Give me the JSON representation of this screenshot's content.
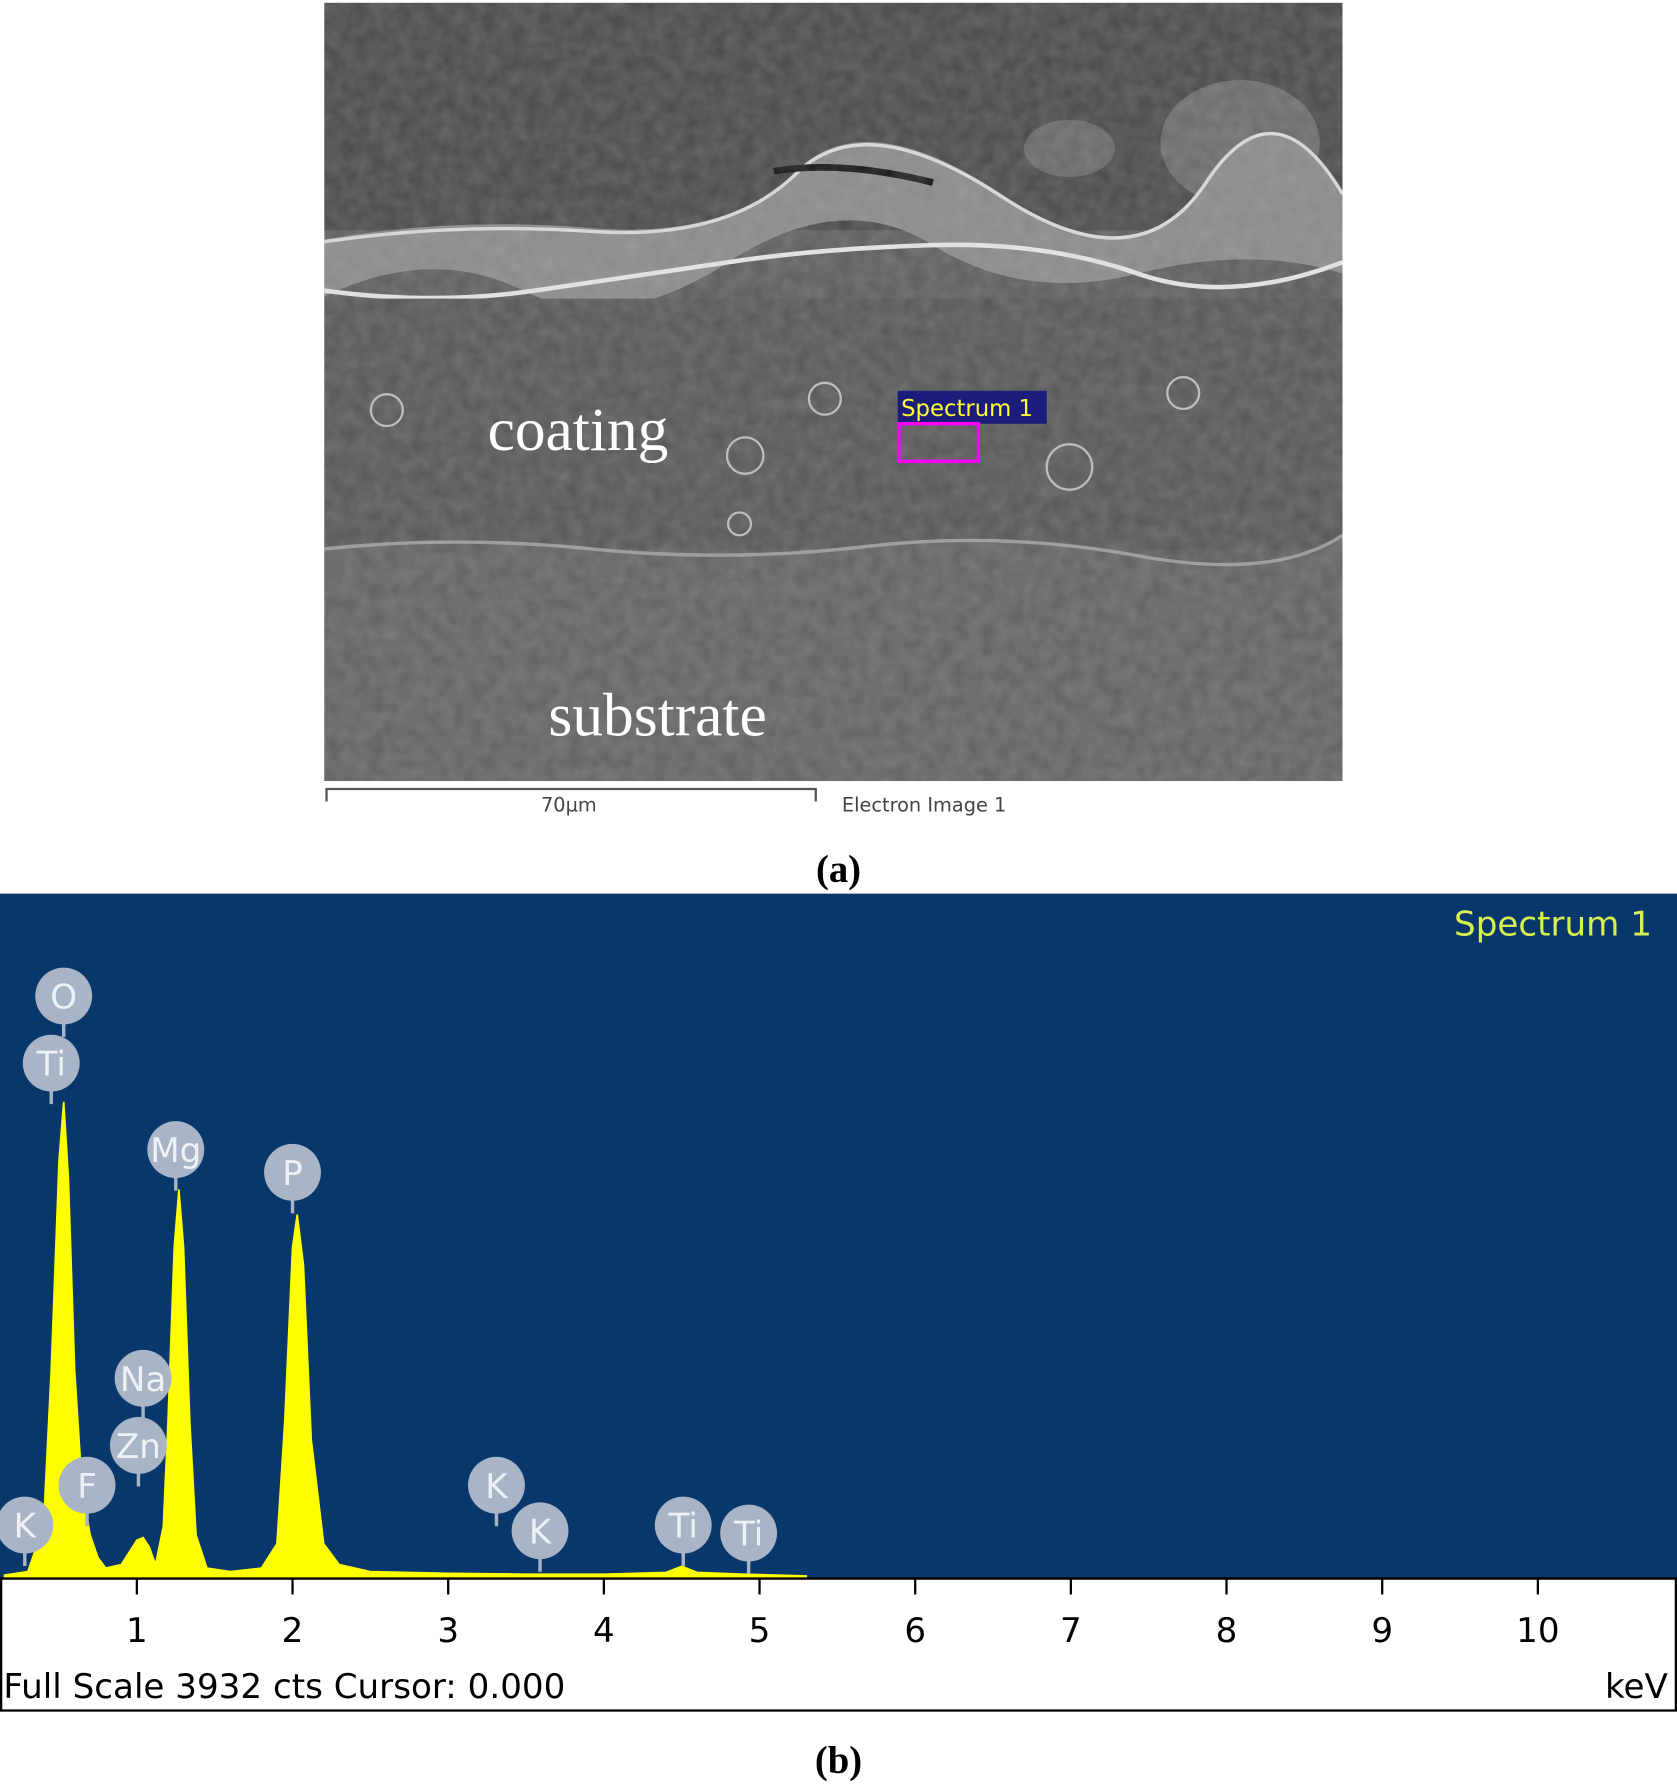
{
  "panel_a": {
    "region_labels": [
      "coating",
      "substrate"
    ],
    "spectrum_box": "Spectrum 1",
    "scale_bar": "70µm",
    "image_name": "Electron Image 1",
    "caption": "(a)"
  },
  "chart_data": {
    "type": "line",
    "title": "Spectrum 1",
    "x": [
      0.15,
      0.3,
      0.4,
      0.45,
      0.5,
      0.53,
      0.56,
      0.6,
      0.65,
      0.7,
      0.75,
      0.8,
      0.9,
      0.95,
      1.0,
      1.04,
      1.08,
      1.12,
      1.17,
      1.2,
      1.24,
      1.27,
      1.3,
      1.34,
      1.38,
      1.45,
      1.6,
      1.8,
      1.9,
      1.95,
      2.0,
      2.03,
      2.07,
      2.12,
      2.2,
      2.3,
      2.5,
      3.0,
      3.5,
      4.0,
      4.4,
      4.5,
      4.6,
      4.9,
      5.3
    ],
    "values": [
      20,
      40,
      300,
      1200,
      2400,
      2737,
      2300,
      1200,
      500,
      250,
      120,
      60,
      80,
      150,
      220,
      235,
      180,
      80,
      300,
      900,
      1900,
      2234,
      1900,
      900,
      250,
      60,
      40,
      60,
      200,
      900,
      1900,
      2090,
      1800,
      800,
      200,
      80,
      40,
      30,
      25,
      25,
      35,
      70,
      35,
      25,
      15
    ],
    "color": "#ffff00",
    "background": "#08376b",
    "xlim": [
      0.15,
      10.85
    ],
    "ylim": [
      0,
      3932
    ],
    "xticks": [
      1,
      2,
      3,
      4,
      5,
      6,
      7,
      8,
      9,
      10
    ],
    "xlabel": "keV",
    "status": "Full Scale 3932 cts Cursor: 0.000",
    "peaks": [
      {
        "label": "O",
        "x": 0.53
      },
      {
        "label": "Ti",
        "x": 0.45
      },
      {
        "label": "Mg",
        "x": 1.25
      },
      {
        "label": "P",
        "x": 2.0
      },
      {
        "label": "Na",
        "x": 1.04
      },
      {
        "label": "Zn",
        "x": 1.01
      },
      {
        "label": "F",
        "x": 0.68
      },
      {
        "label": "K",
        "x": 0.28
      },
      {
        "label": "K",
        "x": 3.31
      },
      {
        "label": "K",
        "x": 3.59
      },
      {
        "label": "Ti",
        "x": 4.51
      },
      {
        "label": "Ti",
        "x": 4.93
      }
    ],
    "caption": "(b)"
  }
}
